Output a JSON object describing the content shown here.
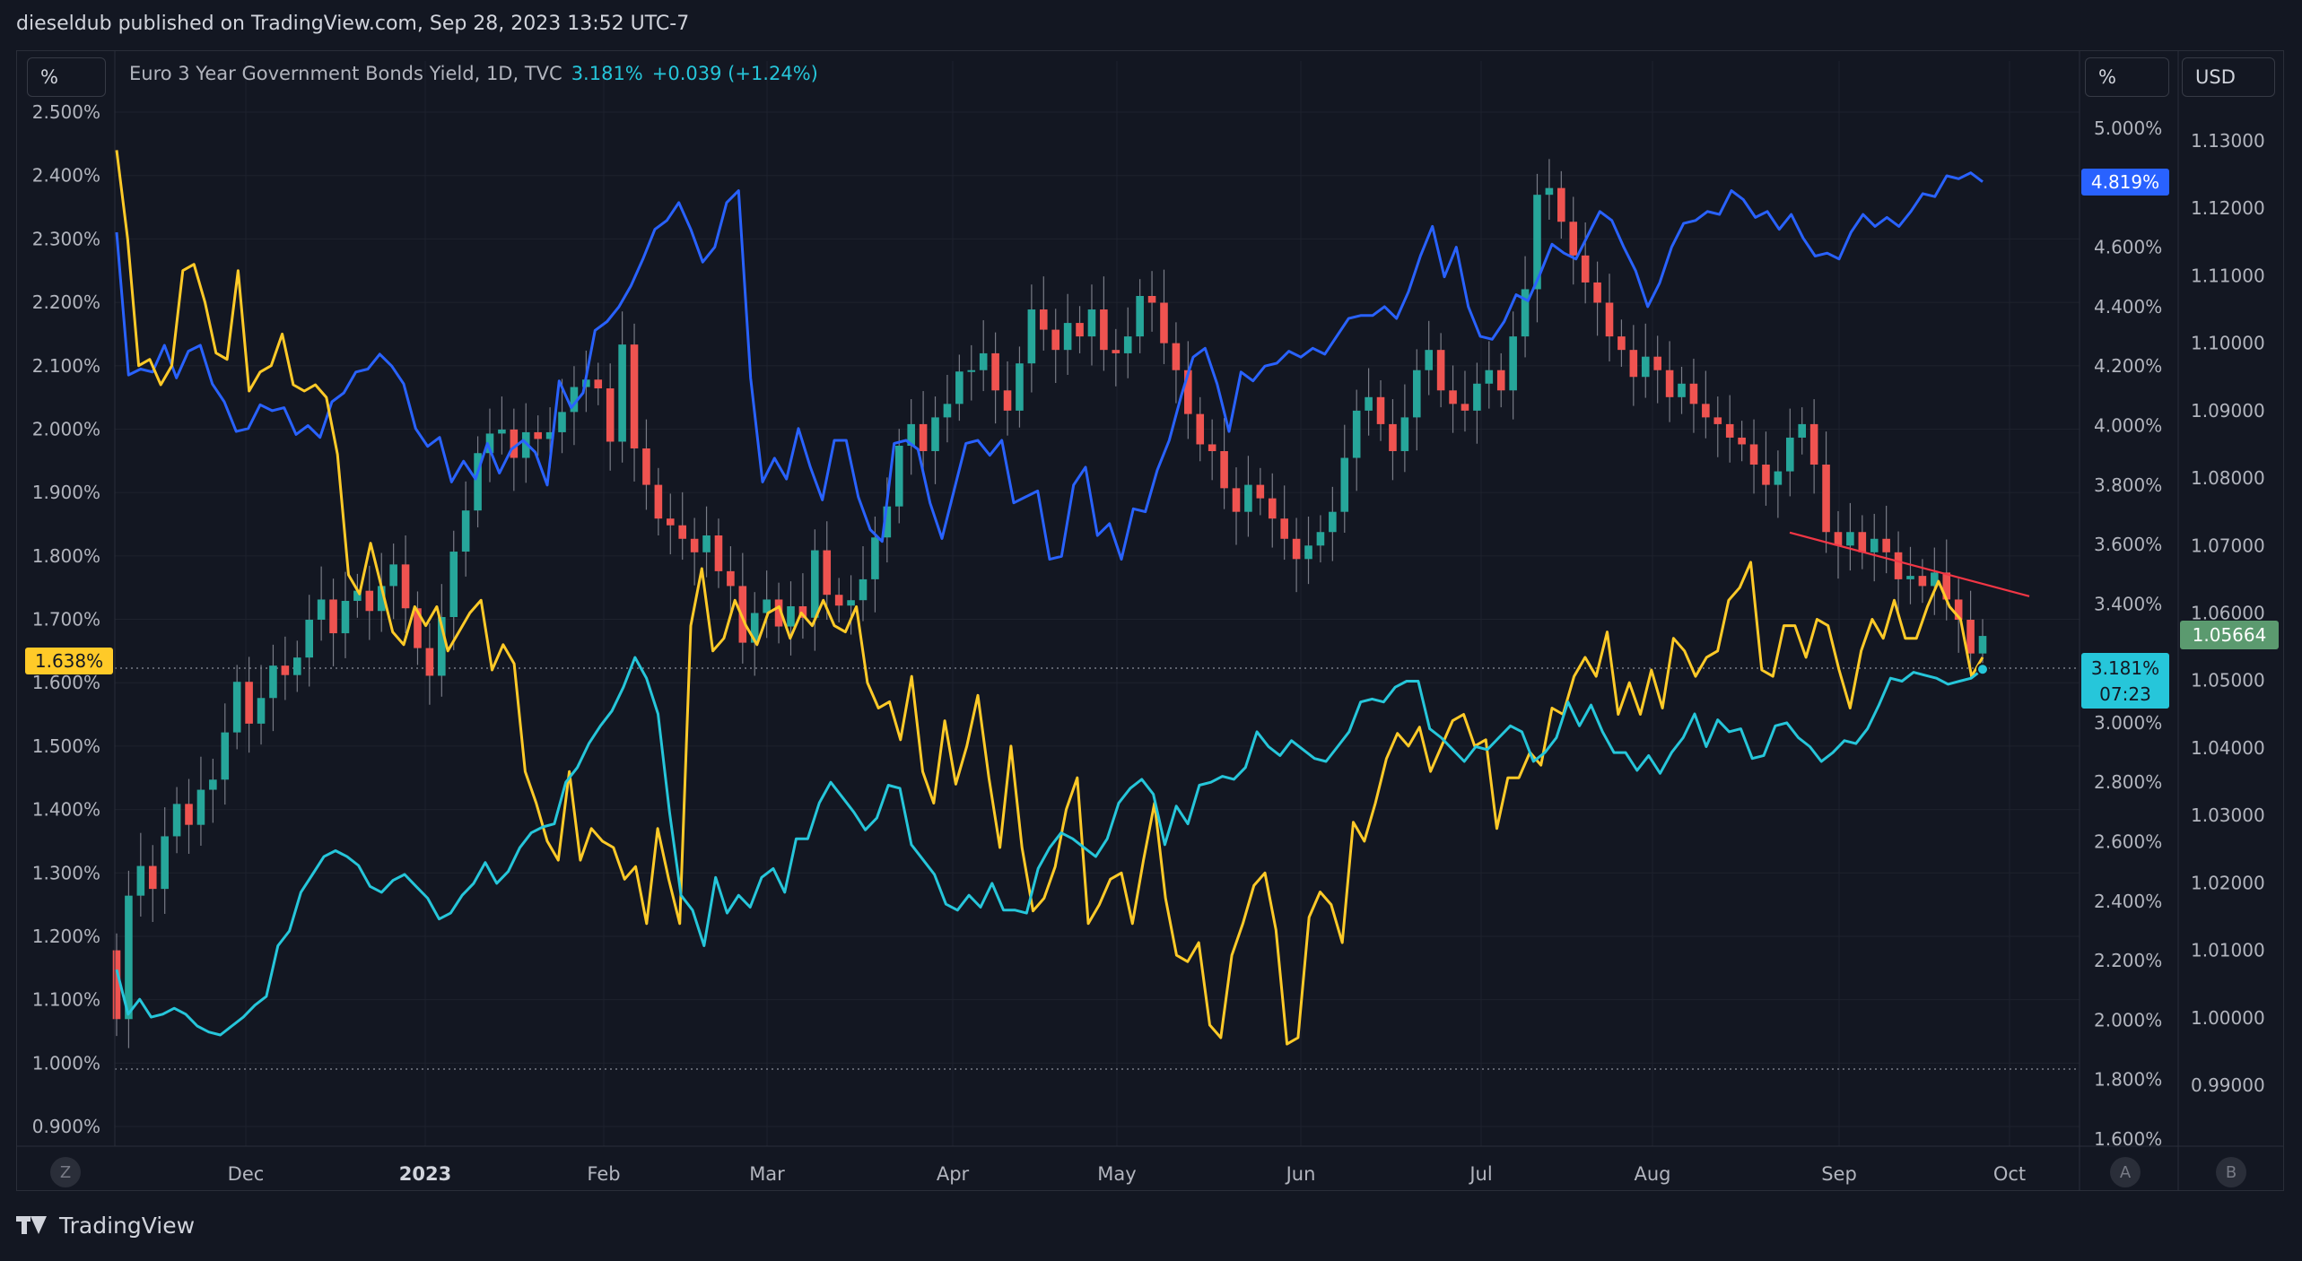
{
  "header": {
    "publisher_line": "dieseldub published on TradingView.com, Sep 28, 2023 13:52 UTC-7"
  },
  "legend": {
    "title": "Euro 3 Year Government Bonds Yield, 1D, TVC",
    "value": "3.181%",
    "change": "+0.039 (+1.24%)"
  },
  "units": {
    "left": "%",
    "right1": "%",
    "right2": "USD"
  },
  "footer": {
    "brand": "TradingView"
  },
  "buttons": {
    "z": "Z",
    "a": "A",
    "b": "B"
  },
  "colors": {
    "bg": "#131722",
    "grid": "#1e222d",
    "blue": "#2962ff",
    "yellow": "#ffca28",
    "cyan": "#26c6da",
    "up": "#26a69a",
    "down": "#ef5350",
    "trend": "#f23645",
    "axis_text": "#b2b5be"
  },
  "chart_data": {
    "type": "line",
    "title": "Euro 3 Year Government Bonds Yield, 1D, TVC",
    "x_axis": {
      "labels": [
        "Dec",
        "2023",
        "Feb",
        "Mar",
        "Apr",
        "May",
        "Jun",
        "Jul",
        "Aug",
        "Sep",
        "Oct"
      ],
      "range": [
        "2022-11-01",
        "2023-10-04"
      ]
    },
    "y_axis_left": {
      "unit": "%",
      "range": [
        0.875,
        2.525
      ],
      "ticks": [
        "2.500%",
        "2.400%",
        "2.300%",
        "2.200%",
        "2.100%",
        "2.000%",
        "1.900%",
        "1.800%",
        "1.700%",
        "1.600%",
        "1.500%",
        "1.400%",
        "1.300%",
        "1.200%",
        "1.100%",
        "1.000%",
        "0.900%"
      ]
    },
    "y_axis_right_pct": {
      "unit": "%",
      "range": [
        1.55,
        5.05
      ],
      "ticks": [
        "5.000%",
        "4.800%",
        "4.600%",
        "4.400%",
        "4.200%",
        "4.000%",
        "3.800%",
        "3.600%",
        "3.400%",
        "3.200%",
        "3.000%",
        "2.800%",
        "2.600%",
        "2.400%",
        "2.200%",
        "2.000%",
        "1.800%",
        "1.600%"
      ]
    },
    "y_axis_right_usd": {
      "unit": "USD",
      "range": [
        0.9855,
        1.1326
      ],
      "ticks": [
        "1.13000",
        "1.12000",
        "1.11000",
        "1.10000",
        "1.09000",
        "1.08000",
        "1.07000",
        "1.06000",
        "1.05000",
        "1.04000",
        "1.03000",
        "1.02000",
        "1.01000",
        "1.00000",
        "0.99000"
      ]
    },
    "price_labels": {
      "left_yellow": "1.638%",
      "blue": "4.819%",
      "cyan_value": "3.181%",
      "cyan_countdown": "07:23",
      "usd": "1.05664"
    },
    "dotted_levels": [
      1.617,
      0.99
    ],
    "series": [
      {
        "name": "Candles (EURUSD, USD axis)",
        "axis": "usd",
        "kind": "candle",
        "closes": [
          0.9998,
          1.0181,
          1.0225,
          1.0191,
          1.0269,
          1.0317,
          1.0286,
          1.0338,
          1.0353,
          1.0423,
          1.0498,
          1.0436,
          1.0474,
          1.0522,
          1.0508,
          1.0534,
          1.059,
          1.062,
          1.057,
          1.0618,
          1.0633,
          1.0603,
          1.064,
          1.0672,
          1.0607,
          1.0548,
          1.0507,
          1.0594,
          1.0691,
          1.0752,
          1.0837,
          1.0866,
          1.0872,
          1.083,
          1.0868,
          1.0858,
          1.0868,
          1.0898,
          1.0935,
          1.0946,
          1.0933,
          1.0854,
          1.0998,
          1.0844,
          1.079,
          1.074,
          1.073,
          1.071,
          1.069,
          1.0715,
          1.0662,
          1.064,
          1.0556,
          1.06,
          1.062,
          1.058,
          1.061,
          1.0593,
          1.0693,
          1.0627,
          1.0611,
          1.0619,
          1.065,
          1.0712,
          1.0758,
          1.0848,
          1.088,
          1.084,
          1.089,
          1.091,
          1.0958,
          1.096,
          1.0985,
          1.093,
          1.09,
          1.097,
          1.105,
          1.102,
          1.099,
          1.103,
          1.101,
          1.105,
          1.099,
          1.0985,
          1.101,
          1.107,
          1.106,
          1.1,
          1.096,
          1.0895,
          1.085,
          1.084,
          1.0785,
          1.075,
          1.079,
          1.077,
          1.074,
          1.071,
          1.068,
          1.07,
          1.072,
          1.075,
          1.083,
          1.09,
          1.092,
          1.088,
          1.084,
          1.089,
          1.096,
          1.099,
          1.093,
          1.091,
          1.09,
          1.094,
          1.096,
          1.093,
          1.101,
          1.108,
          1.122,
          1.123,
          1.118,
          1.113,
          1.109,
          1.106,
          1.101,
          1.099,
          1.095,
          1.098,
          1.096,
          1.092,
          1.094,
          1.091,
          1.089,
          1.088,
          1.086,
          1.085,
          1.082,
          1.079,
          1.081,
          1.086,
          1.088,
          1.082,
          1.072,
          1.07,
          1.072,
          1.069,
          1.071,
          1.069,
          1.065,
          1.0655,
          1.064,
          1.066,
          1.062,
          1.059,
          1.054,
          1.0566
        ]
      },
      {
        "name": "Blue line (right % axis)",
        "axis": "right_pct",
        "kind": "line",
        "values": [
          4.65,
          4.17,
          4.19,
          4.18,
          4.27,
          4.16,
          4.25,
          4.27,
          4.14,
          4.08,
          3.98,
          3.99,
          4.07,
          4.05,
          4.06,
          3.97,
          4.0,
          3.96,
          4.08,
          4.11,
          4.18,
          4.19,
          4.24,
          4.2,
          4.14,
          3.99,
          3.93,
          3.96,
          3.81,
          3.88,
          3.82,
          3.94,
          3.84,
          3.92,
          3.95,
          3.91,
          3.8,
          4.15,
          4.06,
          4.11,
          4.32,
          4.35,
          4.4,
          4.47,
          4.56,
          4.66,
          4.69,
          4.75,
          4.66,
          4.55,
          4.6,
          4.75,
          4.79,
          4.16,
          3.81,
          3.89,
          3.82,
          3.99,
          3.86,
          3.75,
          3.95,
          3.95,
          3.76,
          3.65,
          3.61,
          3.94,
          3.95,
          3.92,
          3.74,
          3.62,
          3.78,
          3.94,
          3.95,
          3.9,
          3.95,
          3.74,
          3.76,
          3.78,
          3.55,
          3.56,
          3.8,
          3.86,
          3.63,
          3.67,
          3.55,
          3.72,
          3.71,
          3.85,
          3.95,
          4.1,
          4.23,
          4.26,
          4.14,
          3.98,
          4.18,
          4.15,
          4.2,
          4.21,
          4.25,
          4.23,
          4.26,
          4.24,
          4.3,
          4.36,
          4.37,
          4.37,
          4.4,
          4.36,
          4.45,
          4.57,
          4.67,
          4.5,
          4.6,
          4.4,
          4.3,
          4.29,
          4.35,
          4.44,
          4.42,
          4.51,
          4.61,
          4.58,
          4.56,
          4.64,
          4.72,
          4.69,
          4.6,
          4.52,
          4.4,
          4.48,
          4.6,
          4.68,
          4.69,
          4.72,
          4.71,
          4.79,
          4.76,
          4.7,
          4.72,
          4.66,
          4.71,
          4.63,
          4.57,
          4.58,
          4.56,
          4.65,
          4.71,
          4.67,
          4.7,
          4.67,
          4.72,
          4.78,
          4.77,
          4.84,
          4.83,
          4.85,
          4.82
        ]
      },
      {
        "name": "Yellow line (left % axis)",
        "axis": "left",
        "kind": "line",
        "values": [
          2.44,
          2.3,
          2.1,
          2.11,
          2.07,
          2.1,
          2.25,
          2.26,
          2.2,
          2.12,
          2.11,
          2.25,
          2.06,
          2.09,
          2.1,
          2.15,
          2.07,
          2.06,
          2.07,
          2.05,
          1.96,
          1.77,
          1.74,
          1.82,
          1.75,
          1.68,
          1.66,
          1.72,
          1.69,
          1.72,
          1.65,
          1.68,
          1.71,
          1.73,
          1.62,
          1.66,
          1.63,
          1.46,
          1.41,
          1.35,
          1.32,
          1.46,
          1.32,
          1.37,
          1.35,
          1.34,
          1.29,
          1.31,
          1.22,
          1.37,
          1.29,
          1.22,
          1.69,
          1.78,
          1.65,
          1.67,
          1.73,
          1.69,
          1.66,
          1.71,
          1.72,
          1.67,
          1.71,
          1.69,
          1.73,
          1.69,
          1.68,
          1.72,
          1.6,
          1.56,
          1.57,
          1.51,
          1.61,
          1.46,
          1.41,
          1.54,
          1.44,
          1.5,
          1.58,
          1.45,
          1.34,
          1.5,
          1.34,
          1.24,
          1.26,
          1.31,
          1.4,
          1.45,
          1.22,
          1.25,
          1.29,
          1.3,
          1.22,
          1.32,
          1.41,
          1.26,
          1.17,
          1.16,
          1.19,
          1.06,
          1.04,
          1.17,
          1.22,
          1.28,
          1.3,
          1.21,
          1.03,
          1.04,
          1.23,
          1.27,
          1.25,
          1.19,
          1.38,
          1.35,
          1.41,
          1.48,
          1.52,
          1.5,
          1.53,
          1.46,
          1.5,
          1.54,
          1.55,
          1.5,
          1.51,
          1.37,
          1.45,
          1.45,
          1.49,
          1.47,
          1.56,
          1.55,
          1.61,
          1.64,
          1.61,
          1.68,
          1.55,
          1.6,
          1.55,
          1.62,
          1.56,
          1.67,
          1.65,
          1.61,
          1.64,
          1.65,
          1.73,
          1.75,
          1.79,
          1.62,
          1.61,
          1.69,
          1.69,
          1.64,
          1.7,
          1.69,
          1.62,
          1.56,
          1.65,
          1.7,
          1.67,
          1.73,
          1.67,
          1.67,
          1.72,
          1.76,
          1.72,
          1.7,
          1.61,
          1.64
        ]
      },
      {
        "name": "Euro 3 Year Government Bonds Yield (cyan, right % axis)",
        "axis": "right_pct",
        "kind": "line",
        "values": [
          2.17,
          2.02,
          2.07,
          2.01,
          2.02,
          2.04,
          2.02,
          1.98,
          1.96,
          1.95,
          1.98,
          2.01,
          2.05,
          2.08,
          2.25,
          2.3,
          2.43,
          2.49,
          2.55,
          2.57,
          2.55,
          2.52,
          2.45,
          2.43,
          2.47,
          2.49,
          2.45,
          2.41,
          2.34,
          2.36,
          2.42,
          2.46,
          2.53,
          2.46,
          2.5,
          2.58,
          2.63,
          2.65,
          2.66,
          2.8,
          2.85,
          2.93,
          2.99,
          3.04,
          3.12,
          3.22,
          3.15,
          3.03,
          2.7,
          2.42,
          2.37,
          2.25,
          2.48,
          2.36,
          2.42,
          2.38,
          2.48,
          2.51,
          2.43,
          2.61,
          2.61,
          2.73,
          2.8,
          2.75,
          2.7,
          2.64,
          2.68,
          2.79,
          2.78,
          2.59,
          2.54,
          2.49,
          2.39,
          2.37,
          2.42,
          2.38,
          2.46,
          2.37,
          2.37,
          2.36,
          2.51,
          2.58,
          2.63,
          2.61,
          2.58,
          2.55,
          2.61,
          2.73,
          2.78,
          2.81,
          2.76,
          2.59,
          2.72,
          2.66,
          2.79,
          2.8,
          2.82,
          2.81,
          2.85,
          2.97,
          2.92,
          2.89,
          2.94,
          2.91,
          2.88,
          2.87,
          2.92,
          2.97,
          3.07,
          3.08,
          3.07,
          3.12,
          3.14,
          3.14,
          2.98,
          2.95,
          2.91,
          2.87,
          2.92,
          2.91,
          2.95,
          2.99,
          2.97,
          2.87,
          2.9,
          2.95,
          3.07,
          2.99,
          3.06,
          2.97,
          2.9,
          2.9,
          2.84,
          2.89,
          2.83,
          2.9,
          2.95,
          3.03,
          2.92,
          3.01,
          2.97,
          2.98,
          2.88,
          2.89,
          2.99,
          3.0,
          2.95,
          2.92,
          2.87,
          2.9,
          2.94,
          2.93,
          2.98,
          3.06,
          3.15,
          3.14,
          3.17,
          3.16,
          3.15,
          3.13,
          3.14,
          3.15,
          3.18
        ]
      }
    ],
    "trendline": {
      "color": "red",
      "from_date": "2023-08-24",
      "from_value_pct": 3.67,
      "to_date": "2023-10-01",
      "to_value_pct": 3.45
    }
  }
}
